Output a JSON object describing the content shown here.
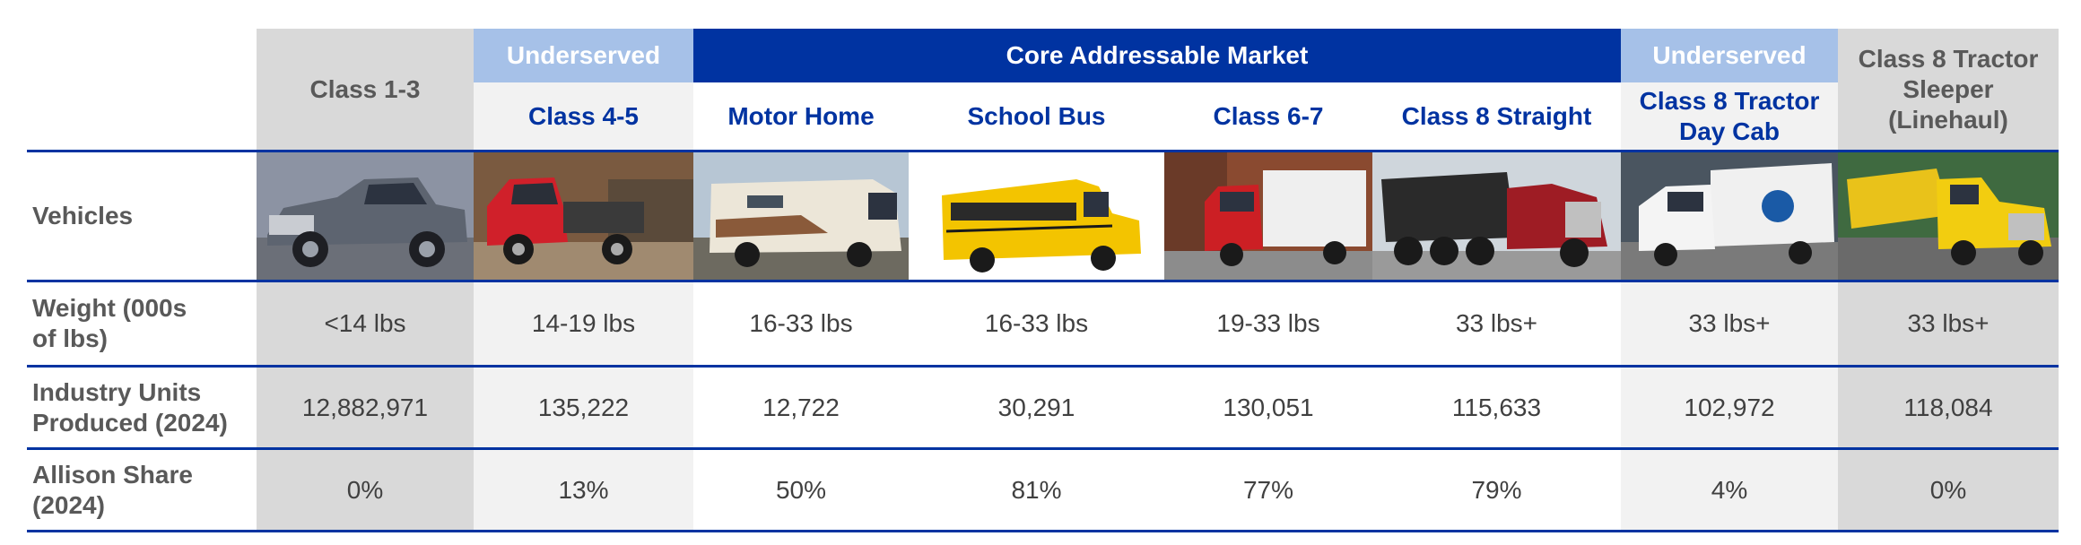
{
  "groups": {
    "underserved_left": "Underserved",
    "core": "Core Addressable Market",
    "underserved_right": "Underserved"
  },
  "columns": [
    "Class 1-3",
    "Class 4-5",
    "Motor Home",
    "School Bus",
    "Class 6-7",
    "Class 8 Straight",
    "Class 8 Tractor Day Cab",
    "Class 8 Tractor Sleeper (Linehaul)"
  ],
  "row_labels": {
    "vehicles": "Vehicles",
    "weight": "Weight (000s of lbs)",
    "units": "Industry Units Produced (2024)",
    "share": "Allison Share (2024)"
  },
  "weight": [
    "<14 lbs",
    "14-19 lbs",
    "16-33 lbs",
    "16-33 lbs",
    "19-33 lbs",
    "33 lbs+",
    "33 lbs+",
    "33 lbs+"
  ],
  "units": [
    "12,882,971",
    "135,222",
    "12,722",
    "30,291",
    "130,051",
    "115,633",
    "102,972",
    "118,084"
  ],
  "share": [
    "0%",
    "13%",
    "50%",
    "81%",
    "77%",
    "79%",
    "4%",
    "0%"
  ],
  "vehicle_images": [
    "pickup-truck",
    "red-dump-truck",
    "motor-home",
    "school-bus",
    "red-box-truck",
    "dump-truck",
    "day-cab-tractor",
    "sleeper-tractor"
  ],
  "colors": {
    "navy": "#0033a1",
    "light_blue": "#a6c1e8",
    "grey": "#d9d9d9",
    "light_grey": "#f2f2f2"
  }
}
